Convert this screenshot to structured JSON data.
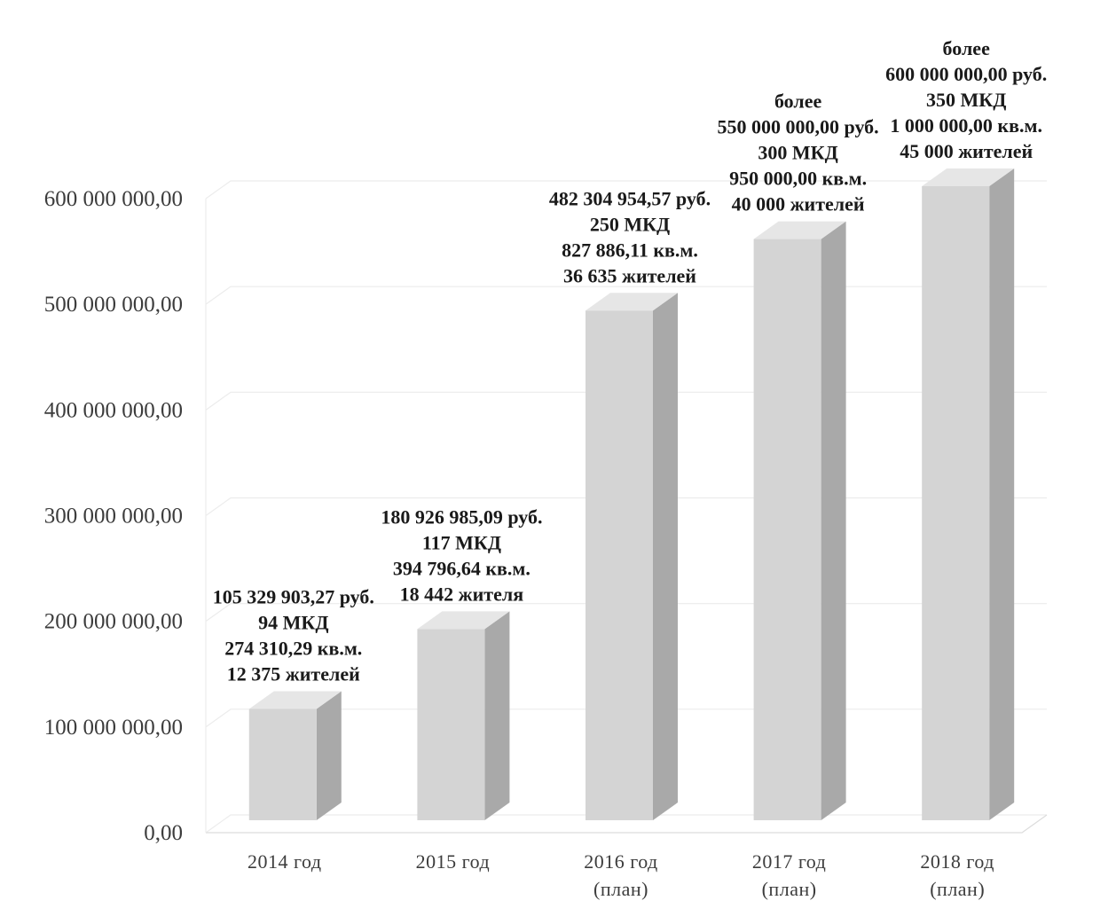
{
  "chart_data": {
    "type": "bar",
    "style": "3d-column",
    "categories": [
      [
        "2014 год"
      ],
      [
        "2015 год"
      ],
      [
        "2016 год",
        "(план)"
      ],
      [
        "2017 год",
        "(план)"
      ],
      [
        "2018 год",
        "(план)"
      ]
    ],
    "values": [
      105329903.27,
      180926985.09,
      482304954.57,
      550000000,
      600000000
    ],
    "data_labels": [
      [
        "105 329 903,27 руб.",
        "94 МКД",
        "274 310,29 кв.м.",
        "12 375 жителей"
      ],
      [
        "180 926 985,09 руб.",
        "117 МКД",
        "394 796,64 кв.м.",
        "18 442 жителя"
      ],
      [
        "482 304 954,57 руб.",
        "250 МКД",
        "827 886,11 кв.м.",
        "36 635 жителей"
      ],
      [
        "более",
        "550 000 000,00 руб.",
        "300 МКД",
        "950 000,00 кв.м.",
        "40 000 жителей"
      ],
      [
        "более",
        "600 000 000,00 руб.",
        "350 МКД",
        "1 000 000,00 кв.м.",
        "45 000 жителей"
      ]
    ],
    "y_ticks": [
      "0,00",
      "100 000 000,00",
      "200 000 000,00",
      "300 000 000,00",
      "400 000 000,00",
      "500 000 000,00",
      "600 000 000,00"
    ],
    "ylim": [
      0,
      600000000
    ],
    "grid": true,
    "legend": "none",
    "colors": {
      "bar_front": "#d4d4d4",
      "bar_side": "#a9a9a9",
      "bar_top": "#e6e6e6",
      "grid": "#ececec",
      "text": "#3c3c3c"
    }
  }
}
